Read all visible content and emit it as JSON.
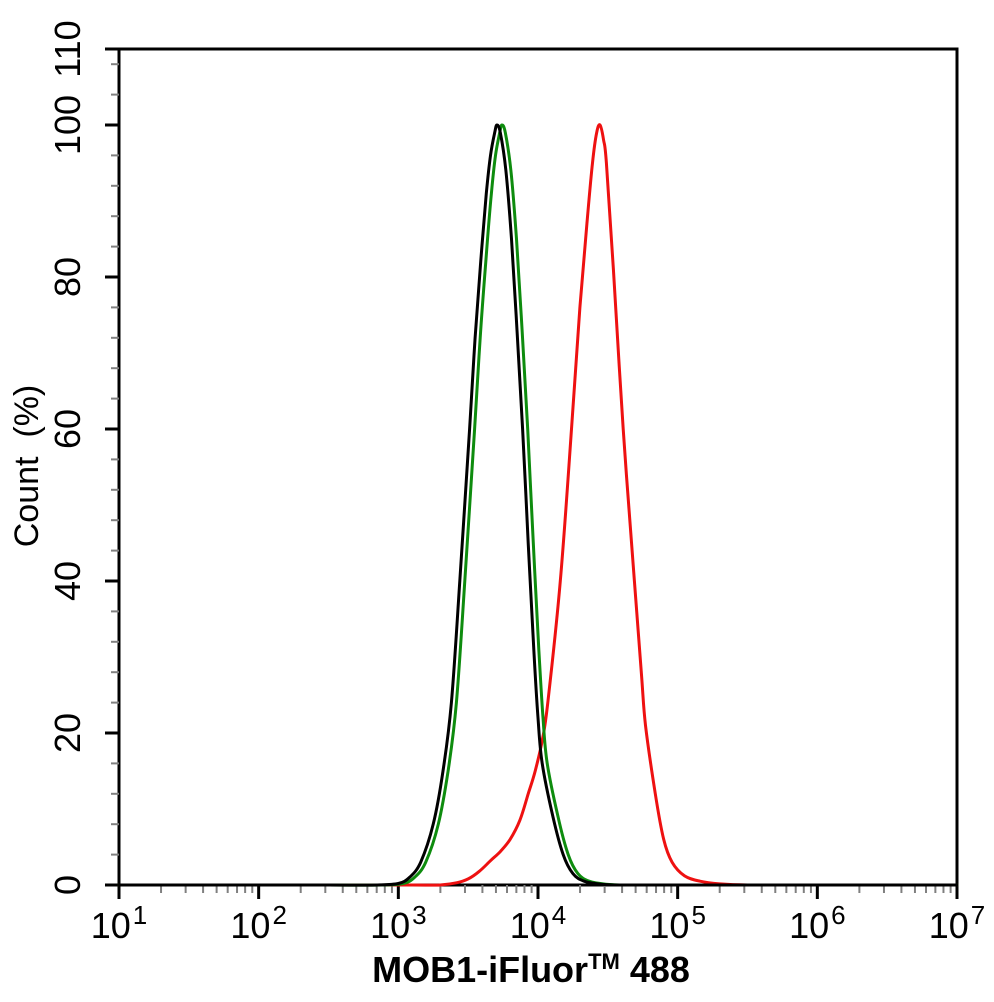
{
  "chart_data": {
    "type": "line",
    "title": "",
    "xlabel": "MOB1-iFluor™ 488",
    "xlabel_parts": {
      "prefix": "MOB1-iFluor",
      "superscript": "TM",
      "suffix": " 488"
    },
    "ylabel": "Count  (%)",
    "x_scale": "log10",
    "xlim_exponents": [
      1,
      7
    ],
    "x_major_tick_exponents": [
      1,
      2,
      3,
      4,
      5,
      6,
      7
    ],
    "x_tick_base": "10",
    "ylim": [
      0,
      110
    ],
    "y_major_ticks": [
      0,
      20,
      40,
      60,
      80,
      100,
      110
    ],
    "y_minor_tick_step": 4,
    "grid": false,
    "legend": "none",
    "axis_color": "#000000",
    "minor_tick_color": "#808080",
    "background_color": "#ffffff",
    "series": [
      {
        "name": "red-curve",
        "color": "#ee1111",
        "peak_x": 27800,
        "peak_y": 100,
        "points": [
          [
            10,
            0
          ],
          [
            100,
            0
          ],
          [
            501,
            0
          ],
          [
            1259,
            0
          ],
          [
            1995,
            0
          ],
          [
            2630,
            0.3
          ],
          [
            3162,
            0.8
          ],
          [
            3802,
            1.8
          ],
          [
            4571,
            3.2
          ],
          [
            5370,
            4.4
          ],
          [
            6310,
            6
          ],
          [
            7413,
            8.5
          ],
          [
            8511,
            12
          ],
          [
            9550,
            15
          ],
          [
            10715,
            19
          ],
          [
            11749,
            24
          ],
          [
            14454,
            40
          ],
          [
            17380,
            60
          ],
          [
            19953,
            76
          ],
          [
            22387,
            87
          ],
          [
            24547,
            95
          ],
          [
            26300,
            99
          ],
          [
            27800,
            100
          ],
          [
            29510,
            98
          ],
          [
            30900,
            95
          ],
          [
            34670,
            81
          ],
          [
            40740,
            60
          ],
          [
            48980,
            40
          ],
          [
            54950,
            28
          ],
          [
            58880,
            21
          ],
          [
            69180,
            12
          ],
          [
            79430,
            6
          ],
          [
            91200,
            3
          ],
          [
            112200,
            1.2
          ],
          [
            144500,
            0.5
          ],
          [
            199500,
            0.15
          ],
          [
            316200,
            0
          ],
          [
            1000000,
            0
          ],
          [
            3162000,
            0
          ],
          [
            10000000,
            0
          ]
        ]
      },
      {
        "name": "green-curve",
        "color": "#0e8c0e",
        "peak_x": 5520,
        "peak_y": 100,
        "points": [
          [
            10,
            0
          ],
          [
            100,
            0
          ],
          [
            316,
            0
          ],
          [
            769,
            0
          ],
          [
            1086,
            0.2
          ],
          [
            1306,
            1
          ],
          [
            1570,
            3
          ],
          [
            1932,
            8
          ],
          [
            2270,
            15
          ],
          [
            2606,
            24
          ],
          [
            2992,
            40
          ],
          [
            3516,
            60
          ],
          [
            3855,
            72
          ],
          [
            4226,
            82
          ],
          [
            4635,
            91
          ],
          [
            4966,
            96
          ],
          [
            5321,
            99
          ],
          [
            5519,
            100
          ],
          [
            5834,
            99
          ],
          [
            6397,
            94
          ],
          [
            7015,
            85
          ],
          [
            7691,
            73
          ],
          [
            8433,
            60
          ],
          [
            9247,
            45
          ],
          [
            10140,
            31
          ],
          [
            10864,
            22
          ],
          [
            11641,
            16
          ],
          [
            13895,
            9
          ],
          [
            16448,
            4
          ],
          [
            19316,
            1.5
          ],
          [
            23227,
            0.5
          ],
          [
            30615,
            0.1
          ],
          [
            43250,
            0
          ],
          [
            100000,
            0
          ],
          [
            1000000,
            0
          ],
          [
            10000000,
            0
          ]
        ]
      },
      {
        "name": "black-curve",
        "color": "#000000",
        "peak_x": 5080,
        "peak_y": 100,
        "points": [
          [
            10,
            0
          ],
          [
            100,
            0
          ],
          [
            316,
            0
          ],
          [
            708,
            0
          ],
          [
            1000,
            0.2
          ],
          [
            1202,
            1
          ],
          [
            1445,
            3
          ],
          [
            1778,
            8
          ],
          [
            2089,
            15
          ],
          [
            2399,
            24
          ],
          [
            2754,
            40
          ],
          [
            3236,
            60
          ],
          [
            3548,
            72
          ],
          [
            3890,
            82
          ],
          [
            4266,
            91
          ],
          [
            4571,
            96
          ],
          [
            4898,
            99
          ],
          [
            5080,
            100
          ],
          [
            5370,
            99
          ],
          [
            5888,
            94
          ],
          [
            6457,
            85
          ],
          [
            7079,
            73
          ],
          [
            7762,
            60
          ],
          [
            8511,
            45
          ],
          [
            9333,
            31
          ],
          [
            10000,
            22
          ],
          [
            10715,
            16
          ],
          [
            12790,
            9
          ],
          [
            15140,
            4
          ],
          [
            17780,
            1.5
          ],
          [
            21380,
            0.5
          ],
          [
            28180,
            0.1
          ],
          [
            39810,
            0
          ],
          [
            100000,
            0
          ],
          [
            1000000,
            0
          ],
          [
            10000000,
            0
          ]
        ]
      }
    ]
  }
}
